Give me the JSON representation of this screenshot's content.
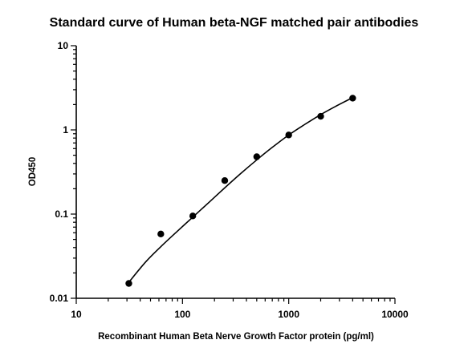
{
  "chart_data": {
    "type": "scatter",
    "title": "Standard curve of Human beta-NGF matched pair antibodies",
    "xlabel": "Recombinant Human Beta Nerve Growth Factor protein (pg/ml)",
    "ylabel": "OD450",
    "x_scale": "log",
    "y_scale": "log",
    "xlim": [
      10,
      10000
    ],
    "ylim": [
      0.01,
      10
    ],
    "x_ticks": [
      "10",
      "100",
      "1000",
      "10000"
    ],
    "y_ticks": [
      "0.01",
      "0.1",
      "1",
      "10"
    ],
    "grid": false,
    "legend": "none",
    "series": [
      {
        "x": [
          31.25,
          62.5,
          125,
          250,
          500,
          1000,
          2000,
          4000
        ],
        "y": [
          0.015,
          0.058,
          0.095,
          0.25,
          0.48,
          0.87,
          1.45,
          2.38
        ]
      }
    ],
    "fit_curve": {
      "x": [
        31.25,
        45,
        62.5,
        90,
        125,
        180,
        250,
        350,
        500,
        700,
        1000,
        1400,
        2000,
        2800,
        4000
      ],
      "y": [
        0.0155,
        0.027,
        0.041,
        0.063,
        0.092,
        0.14,
        0.205,
        0.3,
        0.44,
        0.62,
        0.87,
        1.15,
        1.52,
        1.92,
        2.42
      ]
    },
    "colors": {
      "points": "#000000",
      "curve": "#000000",
      "axes": "#000000"
    }
  }
}
